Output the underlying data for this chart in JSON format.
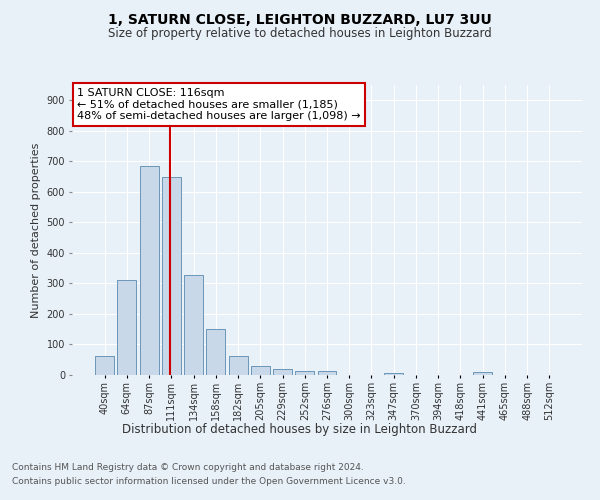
{
  "title1": "1, SATURN CLOSE, LEIGHTON BUZZARD, LU7 3UU",
  "title2": "Size of property relative to detached houses in Leighton Buzzard",
  "xlabel": "Distribution of detached houses by size in Leighton Buzzard",
  "ylabel": "Number of detached properties",
  "footer1": "Contains HM Land Registry data © Crown copyright and database right 2024.",
  "footer2": "Contains public sector information licensed under the Open Government Licence v3.0.",
  "bar_labels": [
    "40sqm",
    "64sqm",
    "87sqm",
    "111sqm",
    "134sqm",
    "158sqm",
    "182sqm",
    "205sqm",
    "229sqm",
    "252sqm",
    "276sqm",
    "300sqm",
    "323sqm",
    "347sqm",
    "370sqm",
    "394sqm",
    "418sqm",
    "441sqm",
    "465sqm",
    "488sqm",
    "512sqm"
  ],
  "bar_values": [
    62,
    310,
    685,
    648,
    328,
    150,
    62,
    30,
    20,
    12,
    12,
    0,
    0,
    8,
    0,
    0,
    0,
    10,
    0,
    0,
    0
  ],
  "bar_color": "#c8d8e8",
  "bar_edge_color": "#5a8ab0",
  "vline_x_index": 3,
  "vline_color": "#cc0000",
  "annotation_text": "1 SATURN CLOSE: 116sqm\n← 51% of detached houses are smaller (1,185)\n48% of semi-detached houses are larger (1,098) →",
  "annotation_box_color": "#ffffff",
  "annotation_box_edge": "#cc0000",
  "ylim": [
    0,
    950
  ],
  "yticks": [
    0,
    100,
    200,
    300,
    400,
    500,
    600,
    700,
    800,
    900
  ],
  "bg_color": "#e8f0f8",
  "plot_bg_color": "#e8f0f8",
  "grid_color": "#ffffff",
  "title1_fontsize": 10,
  "title2_fontsize": 8.5,
  "ylabel_fontsize": 8,
  "xlabel_fontsize": 8.5,
  "tick_fontsize": 7,
  "footer_fontsize": 6.5,
  "annotation_fontsize": 8
}
